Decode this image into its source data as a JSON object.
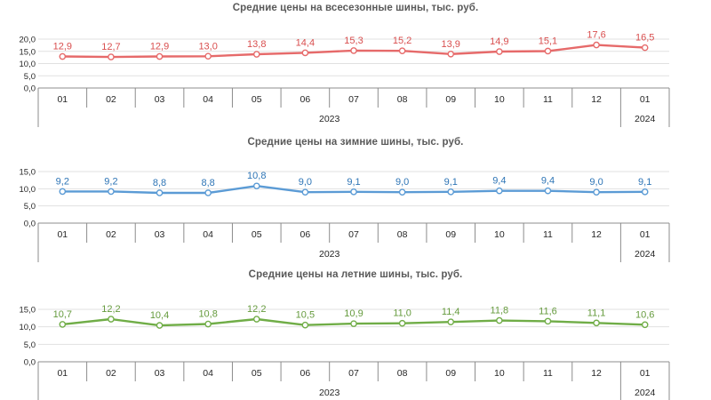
{
  "style": {
    "background": "#FFFFFF",
    "grid_color": "#E1E1E1",
    "axis_color": "#8C8C8C",
    "tick_text_color": "#262626",
    "title_color": "#595959"
  },
  "chart_data": [
    {
      "type": "line",
      "title": "Средние цены на всесезонные шины, тыс. руб.",
      "categories": [
        "01",
        "02",
        "03",
        "04",
        "05",
        "06",
        "07",
        "08",
        "09",
        "10",
        "11",
        "12",
        "01"
      ],
      "category_groups": [
        {
          "label": "2023",
          "span": 12
        },
        {
          "label": "2024",
          "span": 1
        }
      ],
      "values": [
        12.9,
        12.7,
        12.9,
        13.0,
        13.8,
        14.4,
        15.3,
        15.2,
        13.9,
        14.9,
        15.1,
        17.6,
        16.5
      ],
      "point_labels": [
        "12,9",
        "12,7",
        "12,9",
        "13,0",
        "13,8",
        "14,4",
        "15,3",
        "15,2",
        "13,9",
        "14,9",
        "15,1",
        "17,6",
        "16,5"
      ],
      "ylim": [
        0,
        20
      ],
      "yticks": [
        0,
        5,
        10,
        15,
        20
      ],
      "ytick_labels": [
        "0,0",
        "5,0",
        "10,0",
        "15,0",
        "20,0"
      ],
      "line_color": "#E66A6A",
      "label_color": "#D94F4F",
      "legend": "none",
      "grid": "horizontal"
    },
    {
      "type": "line",
      "title": "Средние цены на зимние шины, тыс. руб.",
      "categories": [
        "01",
        "02",
        "03",
        "04",
        "05",
        "06",
        "07",
        "08",
        "09",
        "10",
        "11",
        "12",
        "01"
      ],
      "category_groups": [
        {
          "label": "2023",
          "span": 12
        },
        {
          "label": "2024",
          "span": 1
        }
      ],
      "values": [
        9.2,
        9.2,
        8.8,
        8.8,
        10.8,
        9.0,
        9.1,
        9.0,
        9.1,
        9.4,
        9.4,
        9.0,
        9.1
      ],
      "point_labels": [
        "9,2",
        "9,2",
        "8,8",
        "8,8",
        "10,8",
        "9,0",
        "9,1",
        "9,0",
        "9,1",
        "9,4",
        "9,4",
        "9,0",
        "9,1"
      ],
      "ylim": [
        0,
        15
      ],
      "yticks": [
        0,
        5,
        10,
        15
      ],
      "ytick_labels": [
        "0,0",
        "5,0",
        "10,0",
        "15,0"
      ],
      "line_color": "#5B9BD5",
      "label_color": "#2E75B6",
      "legend": "none",
      "grid": "horizontal"
    },
    {
      "type": "line",
      "title": "Средние цены на летние шины, тыс. руб.",
      "categories": [
        "01",
        "02",
        "03",
        "04",
        "05",
        "06",
        "07",
        "08",
        "09",
        "10",
        "11",
        "12",
        "01"
      ],
      "category_groups": [
        {
          "label": "2023",
          "span": 12
        },
        {
          "label": "2024",
          "span": 1
        }
      ],
      "values": [
        10.7,
        12.2,
        10.4,
        10.8,
        12.2,
        10.5,
        10.9,
        11.0,
        11.4,
        11.8,
        11.6,
        11.1,
        10.6
      ],
      "point_labels": [
        "10,7",
        "12,2",
        "10,4",
        "10,8",
        "12,2",
        "10,5",
        "10,9",
        "11,0",
        "11,4",
        "11,8",
        "11,6",
        "11,1",
        "10,6"
      ],
      "ylim": [
        0,
        15
      ],
      "yticks": [
        0,
        5,
        10,
        15
      ],
      "ytick_labels": [
        "0,0",
        "5,0",
        "10,0",
        "15,0"
      ],
      "line_color": "#70AD47",
      "label_color": "#669B3E",
      "legend": "none",
      "grid": "horizontal"
    }
  ]
}
